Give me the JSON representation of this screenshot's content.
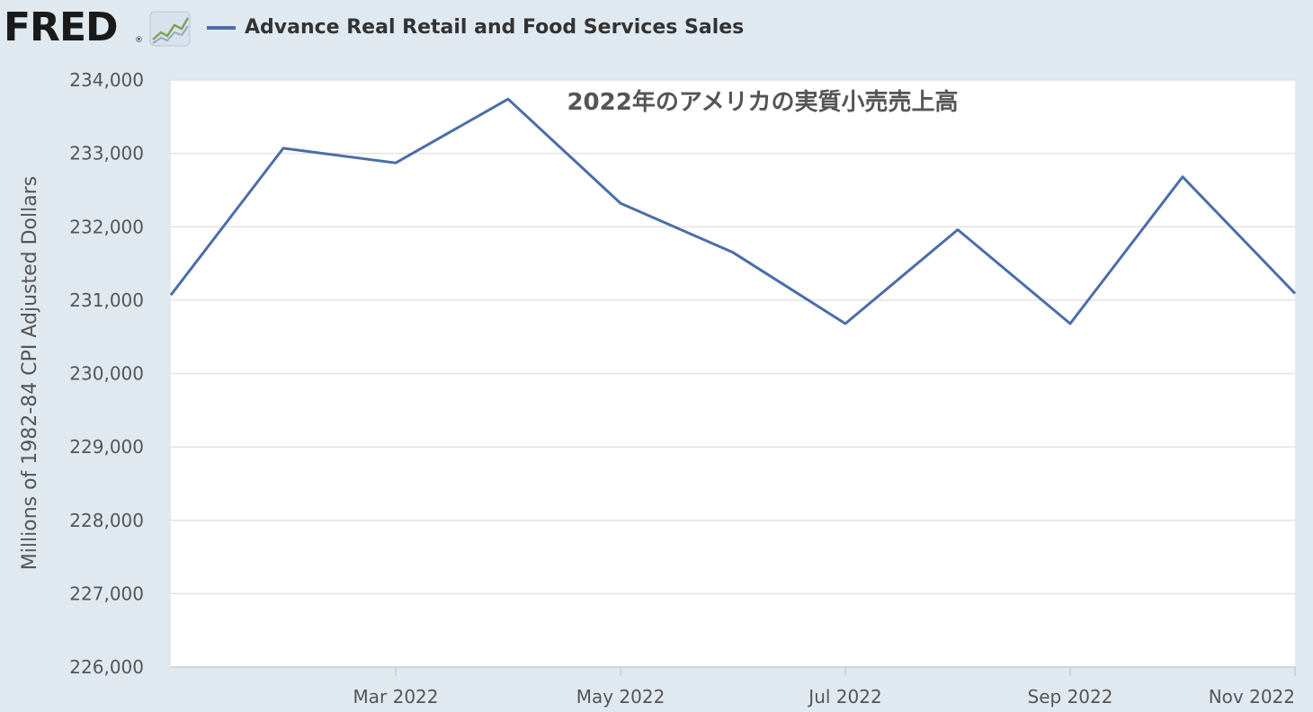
{
  "header": {
    "logo_text": "FRED",
    "logo_mark": "®",
    "logo_icon": "line-chart-icon",
    "legend_label": "Advance Real Retail and Food Services Sales"
  },
  "chart_data": {
    "type": "line",
    "title": "2022年のアメリカの実質小売売上高",
    "ylabel": "Millions of 1982-84 CPI Adjusted Dollars",
    "xlabel": "",
    "x": [
      "2022-01",
      "2022-02",
      "2022-03",
      "2022-04",
      "2022-05",
      "2022-06",
      "2022-07",
      "2022-08",
      "2022-09",
      "2022-10",
      "2022-11"
    ],
    "series": [
      {
        "name": "Advance Real Retail and Food Services Sales",
        "color": "#4a6ea9",
        "values": [
          231070,
          233070,
          232870,
          233740,
          232320,
          231650,
          230680,
          231960,
          230680,
          232680,
          231090
        ]
      }
    ],
    "ylim": [
      226000,
      234000
    ],
    "yticks": [
      226000,
      227000,
      228000,
      229000,
      230000,
      231000,
      232000,
      233000,
      234000
    ],
    "ytick_labels": [
      "226,000",
      "227,000",
      "228,000",
      "229,000",
      "230,000",
      "231,000",
      "232,000",
      "233,000",
      "234,000"
    ],
    "xticks": [
      "2022-03",
      "2022-05",
      "2022-07",
      "2022-09",
      "2022-11"
    ],
    "xtick_labels": [
      "Mar 2022",
      "May 2022",
      "Jul 2022",
      "Sep 2022",
      "Nov 2022"
    ],
    "grid": true,
    "legend_position": "top-left"
  }
}
